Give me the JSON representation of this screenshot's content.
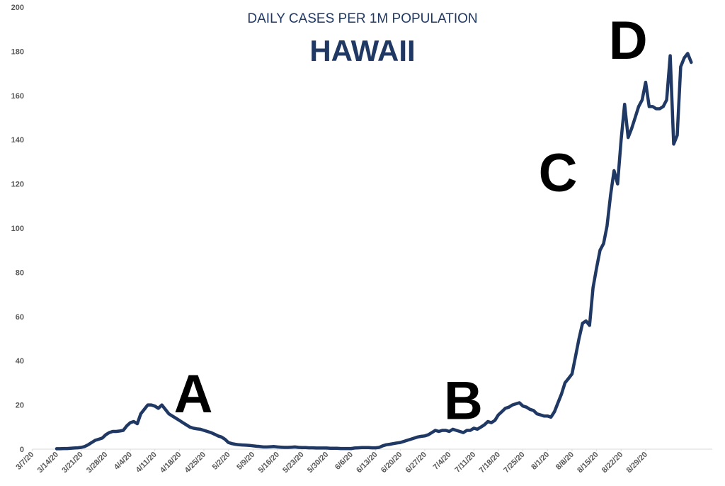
{
  "chart_data": {
    "type": "line",
    "subtitle": "DAILY CASES PER 1M POPULATION",
    "title": "HAWAII",
    "ylim": [
      0,
      200
    ],
    "yticks": [
      0,
      20,
      40,
      60,
      80,
      100,
      120,
      140,
      160,
      180,
      200
    ],
    "x_start": "3/7/20",
    "xtick_labels": [
      "3/7/20",
      "3/14/20",
      "3/21/20",
      "3/28/20",
      "4/4/20",
      "4/11/20",
      "4/18/20",
      "4/25/20",
      "5/2/20",
      "5/9/20",
      "5/16/20",
      "5/23/20",
      "5/30/20",
      "6/6/20",
      "6/13/20",
      "6/20/20",
      "6/27/20",
      "7/4/20",
      "7/11/20",
      "7/18/20",
      "7/25/20",
      "8/1/20",
      "8/8/20",
      "8/15/20",
      "8/22/20",
      "8/29/20"
    ],
    "grid": false,
    "line_color": "#1f3864",
    "annotations": [
      {
        "text": "A",
        "x": "4/22/20",
        "y": 25
      },
      {
        "text": "B",
        "x": "7/8/20",
        "y": 22
      },
      {
        "text": "C",
        "x": "8/4/20",
        "y": 125
      },
      {
        "text": "D",
        "x": "8/24/20",
        "y": 185
      }
    ],
    "series": [
      {
        "values": [
          0.2,
          0.2,
          0.3,
          0.3,
          0.4,
          0.5,
          0.6,
          0.8,
          1.2,
          2.0,
          3.0,
          4.0,
          4.5,
          5.0,
          6.5,
          7.5,
          8.0,
          8.0,
          8.2,
          8.5,
          10.5,
          12.0,
          12.5,
          11.5,
          16.0,
          18.0,
          20.0,
          20.0,
          19.5,
          18.5,
          20.0,
          18.0,
          16.0,
          15.0,
          14.0,
          13.0,
          12.0,
          11.0,
          10.0,
          9.5,
          9.2,
          9.0,
          8.5,
          8.0,
          7.5,
          6.8,
          6.0,
          5.5,
          4.5,
          3.0,
          2.5,
          2.2,
          2.0,
          1.9,
          1.8,
          1.7,
          1.5,
          1.3,
          1.2,
          1.0,
          1.0,
          1.1,
          1.2,
          1.0,
          0.9,
          0.8,
          0.8,
          0.9,
          1.0,
          0.8,
          0.7,
          0.7,
          0.6,
          0.6,
          0.5,
          0.5,
          0.5,
          0.5,
          0.4,
          0.4,
          0.4,
          0.3,
          0.3,
          0.3,
          0.3,
          0.5,
          0.6,
          0.7,
          0.7,
          0.7,
          0.6,
          0.6,
          0.8,
          1.5,
          2.0,
          2.2,
          2.5,
          2.8,
          3.0,
          3.5,
          4.0,
          4.5,
          5.0,
          5.5,
          5.8,
          6.0,
          6.5,
          7.5,
          8.5,
          8.0,
          8.5,
          8.5,
          8.0,
          9.0,
          8.5,
          8.0,
          7.5,
          8.5,
          8.5,
          9.5,
          9.0,
          10.0,
          11.0,
          12.5,
          12.0,
          13.0,
          15.5,
          17.0,
          18.5,
          19.0,
          20.0,
          20.5,
          21.0,
          19.5,
          19.0,
          18.0,
          17.5,
          16.0,
          15.5,
          15.0,
          15.0,
          14.5,
          17.0,
          21.0,
          25.0,
          30.0,
          32.0,
          34.0,
          42.0,
          50.0,
          57.0,
          58.0,
          56.0,
          73.0,
          82.0,
          90.0,
          93.0,
          101.0,
          115.0,
          126.0,
          120.0,
          140.0,
          156.0,
          141.0,
          145.0,
          150.0,
          155.0,
          158.0,
          166.0,
          155.0,
          155.0,
          154.0,
          154.0,
          155.0,
          158.0,
          178.0,
          138.0,
          142.0,
          173.0,
          177.0,
          179.0,
          175.0
        ]
      }
    ]
  }
}
